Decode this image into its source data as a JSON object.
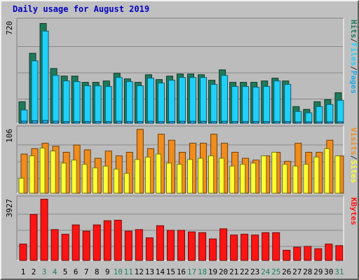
{
  "title": "Daily usage for August 2019",
  "colors": {
    "background": "#c0c0c0",
    "plot_bg": "#bcbcbc",
    "grid": "#888888",
    "title": "#0000c0",
    "hits": "#1e7a5a",
    "files": "#20d0f8",
    "pages": "#20a8e8",
    "visits": "#f08c1c",
    "sites": "#ffff33",
    "kbytes": "#ff1414",
    "sep": "#303030",
    "weekend_label": "#208060",
    "day_label": "#000000"
  },
  "chart_data": [
    {
      "type": "bar",
      "name": "hits-files-pages",
      "categories": [
        "1",
        "2",
        "3",
        "4",
        "5",
        "6",
        "7",
        "8",
        "9",
        "10",
        "11",
        "12",
        "13",
        "14",
        "15",
        "16",
        "17",
        "18",
        "19",
        "20",
        "21",
        "22",
        "23",
        "24",
        "25",
        "26",
        "27",
        "28",
        "29",
        "30",
        "31"
      ],
      "ymax_label": "720",
      "ylim": [
        0,
        720
      ],
      "legend": [
        "Pages",
        "Files",
        "Hits"
      ],
      "series": [
        {
          "name": "Hits",
          "values": [
            155,
            505,
            720,
            395,
            340,
            340,
            295,
            295,
            305,
            360,
            320,
            295,
            350,
            315,
            340,
            355,
            355,
            350,
            310,
            385,
            295,
            295,
            295,
            305,
            325,
            305,
            120,
            100,
            155,
            170,
            220
          ]
        },
        {
          "name": "Files",
          "values": [
            95,
            450,
            665,
            345,
            305,
            300,
            270,
            270,
            265,
            330,
            300,
            270,
            325,
            290,
            310,
            330,
            330,
            330,
            280,
            345,
            265,
            265,
            260,
            265,
            305,
            280,
            85,
            75,
            120,
            135,
            165
          ]
        },
        {
          "name": "Pages",
          "values": [
            15,
            18,
            20,
            15,
            12,
            12,
            12,
            12,
            12,
            14,
            12,
            12,
            14,
            12,
            12,
            14,
            14,
            14,
            12,
            14,
            12,
            12,
            12,
            12,
            12,
            12,
            5,
            4,
            6,
            6,
            7
          ]
        }
      ]
    },
    {
      "type": "bar",
      "name": "visits-sites",
      "categories": [
        "1",
        "2",
        "3",
        "4",
        "5",
        "6",
        "7",
        "8",
        "9",
        "10",
        "11",
        "12",
        "13",
        "14",
        "15",
        "16",
        "17",
        "18",
        "19",
        "20",
        "21",
        "22",
        "23",
        "24",
        "25",
        "26",
        "27",
        "28",
        "29",
        "30",
        "31"
      ],
      "ymax_label": "106",
      "ylim": [
        0,
        106
      ],
      "legend": [
        "Sites",
        "Visits"
      ],
      "series": [
        {
          "name": "Visits",
          "values": [
            65,
            74,
            83,
            78,
            68,
            80,
            72,
            58,
            70,
            62,
            68,
            106,
            74,
            98,
            88,
            68,
            83,
            83,
            98,
            83,
            68,
            58,
            55,
            62,
            68,
            53,
            83,
            68,
            68,
            88,
            62
          ]
        },
        {
          "name": "Sites",
          "values": [
            25,
            62,
            75,
            70,
            50,
            55,
            48,
            42,
            45,
            40,
            33,
            56,
            60,
            65,
            50,
            48,
            56,
            58,
            62,
            58,
            45,
            48,
            50,
            62,
            68,
            48,
            45,
            48,
            60,
            74,
            62
          ]
        }
      ]
    },
    {
      "type": "bar",
      "name": "kbytes",
      "categories": [
        "1",
        "2",
        "3",
        "4",
        "5",
        "6",
        "7",
        "8",
        "9",
        "10",
        "11",
        "12",
        "13",
        "14",
        "15",
        "16",
        "17",
        "18",
        "19",
        "20",
        "21",
        "22",
        "23",
        "24",
        "25",
        "26",
        "27",
        "28",
        "29",
        "30",
        "31"
      ],
      "ymax_label": "3927",
      "ylim": [
        0,
        3927
      ],
      "legend": [
        "KBytes"
      ],
      "series": [
        {
          "name": "KBytes",
          "values": [
            1050,
            2950,
            3927,
            1980,
            1680,
            2280,
            1880,
            2280,
            2550,
            2580,
            1880,
            1980,
            1450,
            2230,
            1930,
            1930,
            1830,
            1780,
            1380,
            2030,
            1630,
            1680,
            1630,
            1780,
            1780,
            650,
            850,
            900,
            750,
            1050,
            950
          ]
        }
      ]
    }
  ]
}
